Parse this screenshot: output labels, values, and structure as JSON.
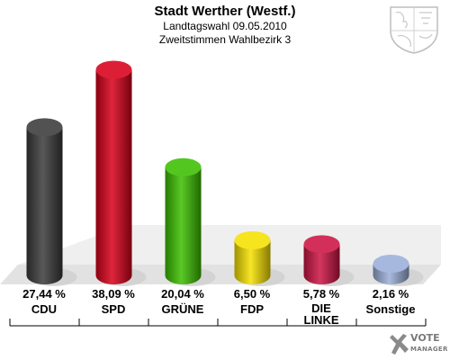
{
  "chart_data": {
    "type": "bar",
    "title": "Stadt Werther (Westf.)",
    "subtitle_1": "Landtagswahl 09.05.2010",
    "subtitle_2": "Zweitstimmen Wahlbezirk 3",
    "categories": [
      "CDU",
      "SPD",
      "GRÜNE",
      "FDP",
      "DIE LINKE",
      "Sonstige"
    ],
    "values": [
      27.44,
      38.09,
      20.04,
      6.5,
      5.78,
      2.16
    ],
    "value_labels": [
      "27,44 %",
      "38,09 %",
      "20,04 %",
      "6,50 %",
      "5,78 %",
      "2,16 %"
    ],
    "colors": [
      "#3a3a3a",
      "#d8001a",
      "#3cbf00",
      "#f5e000",
      "#cc1444",
      "#9aaed8"
    ],
    "ylim": [
      0,
      40
    ],
    "grid": false
  },
  "logo": {
    "line1": "VOTE",
    "line2": "MANAGER"
  }
}
